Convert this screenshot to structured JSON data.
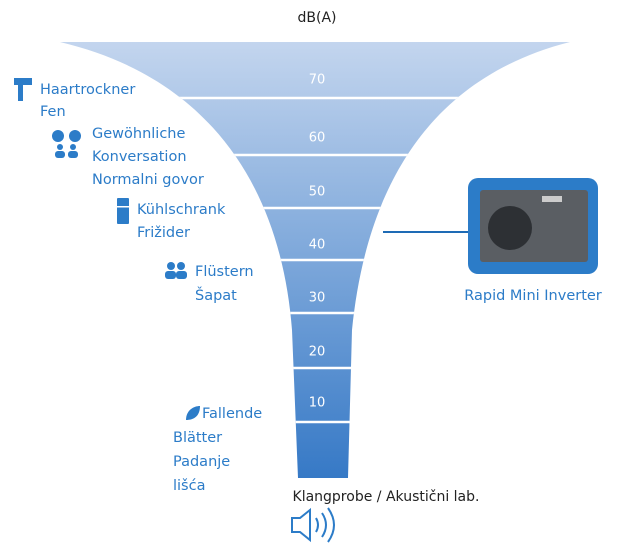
{
  "title": "dB(A)",
  "levels": [
    "70",
    "60",
    "50",
    "40",
    "30",
    "20",
    "10"
  ],
  "sources": [
    {
      "lines": [
        "Haartrockner",
        "Fen"
      ]
    },
    {
      "lines": [
        "Gewöhnliche",
        "Konversation",
        "Normalni govor"
      ]
    },
    {
      "lines": [
        "Kühlschrank",
        "Frižider"
      ]
    },
    {
      "lines": [
        "Flüstern",
        "Šapat"
      ]
    },
    {
      "lines": [
        "Fallende",
        "Blätter",
        "Padanje",
        "lišća"
      ]
    }
  ],
  "product": "Rapid Mini Inverter",
  "sound_sample": "Klangprobe / Akustični lab."
}
